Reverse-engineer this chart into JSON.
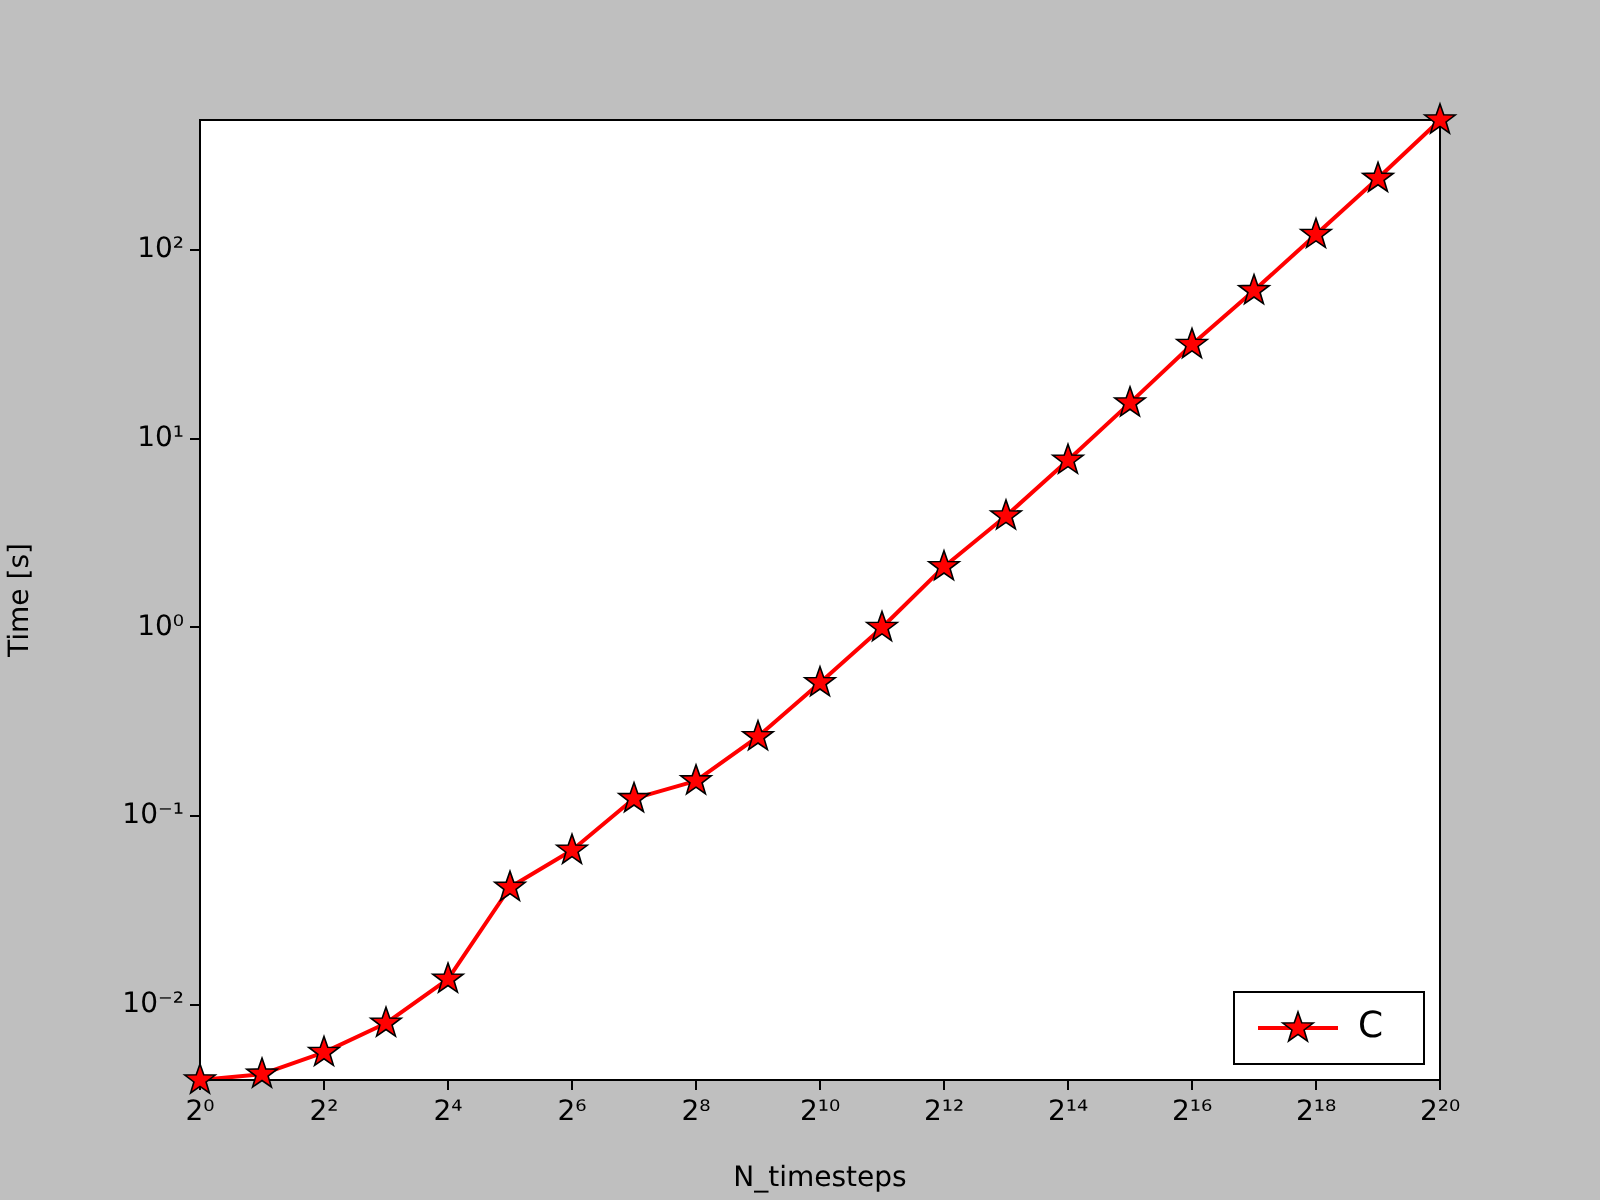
{
  "chart_data": {
    "type": "line",
    "xlabel": "N_timesteps",
    "ylabel": "Time [s]",
    "log": "xy",
    "grid": false,
    "legend": "bottom right",
    "marker": "star",
    "line_style": "solid",
    "x": [
      1,
      2,
      4,
      8,
      16,
      32,
      64,
      128,
      256,
      512,
      1024,
      2048,
      4096,
      8192,
      16384,
      32768,
      65536,
      131072,
      262144,
      524288,
      1048576
    ],
    "series": [
      {
        "name": "C",
        "color": "#ff0000",
        "values": [
          0.004,
          0.0043,
          0.0056,
          0.008,
          0.0137,
          0.042,
          0.066,
          0.124,
          0.154,
          0.264,
          0.51,
          1.0,
          2.1,
          3.9,
          7.7,
          15.5,
          31.6,
          61,
          121,
          240,
          489
        ]
      }
    ],
    "xlim": [
      1,
      1048576
    ],
    "ylim": [
      0.004,
      489
    ],
    "xticks": [
      {
        "value": 1,
        "label": "2⁰"
      },
      {
        "value": 4,
        "label": "2²"
      },
      {
        "value": 16,
        "label": "2⁴"
      },
      {
        "value": 64,
        "label": "2⁶"
      },
      {
        "value": 256,
        "label": "2⁸"
      },
      {
        "value": 1024,
        "label": "2¹⁰"
      },
      {
        "value": 4096,
        "label": "2¹²"
      },
      {
        "value": 16384,
        "label": "2¹⁴"
      },
      {
        "value": 65536,
        "label": "2¹⁶"
      },
      {
        "value": 262144,
        "label": "2¹⁸"
      },
      {
        "value": 1048576,
        "label": "2²⁰"
      }
    ],
    "yticks": [
      {
        "value": 0.01,
        "label": "10⁻²"
      },
      {
        "value": 0.1,
        "label": "10⁻¹"
      },
      {
        "value": 1,
        "label": "10⁰"
      },
      {
        "value": 10,
        "label": "10¹"
      },
      {
        "value": 100,
        "label": "10²"
      }
    ]
  }
}
